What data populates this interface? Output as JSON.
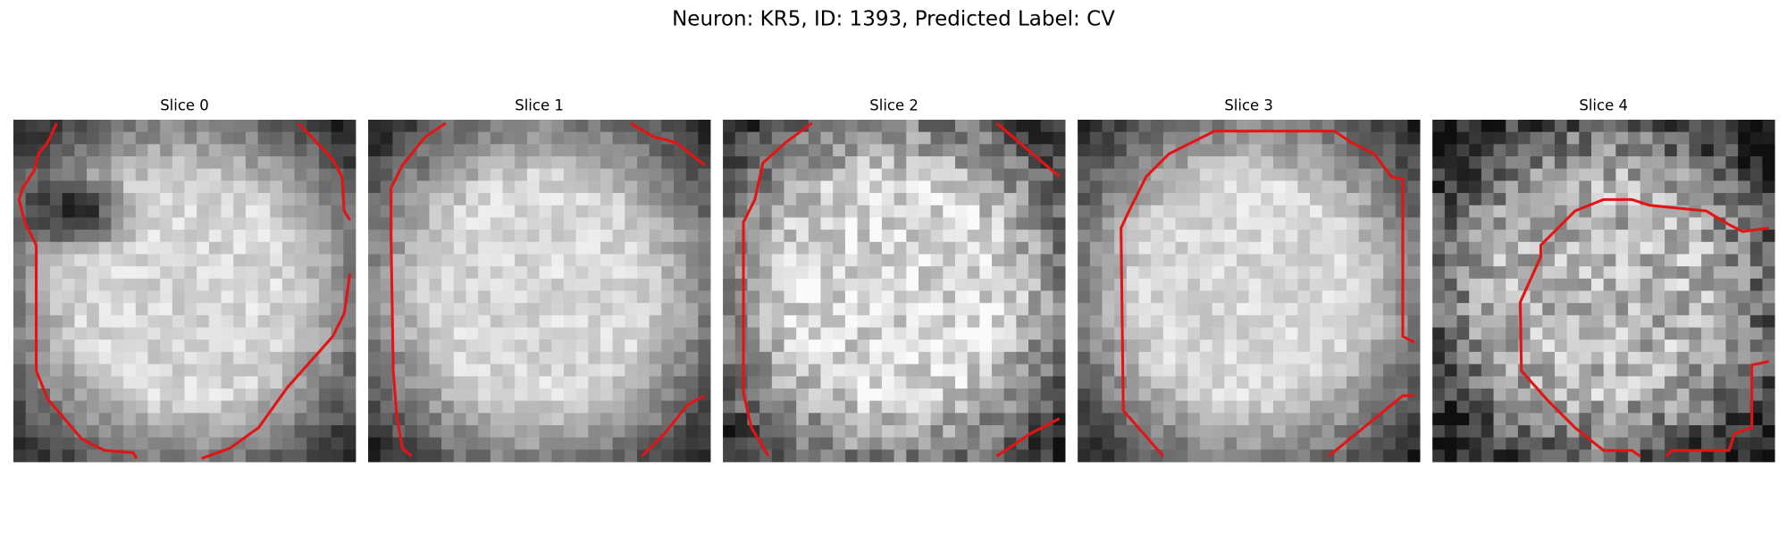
{
  "header": {
    "title": "Neuron: KR5, ID: 1393, Predicted Label: CV"
  },
  "panels": [
    {
      "title": "Slice 0"
    },
    {
      "title": "Slice 1"
    },
    {
      "title": "Slice 2"
    },
    {
      "title": "Slice 3"
    },
    {
      "title": "Slice 4"
    }
  ]
}
